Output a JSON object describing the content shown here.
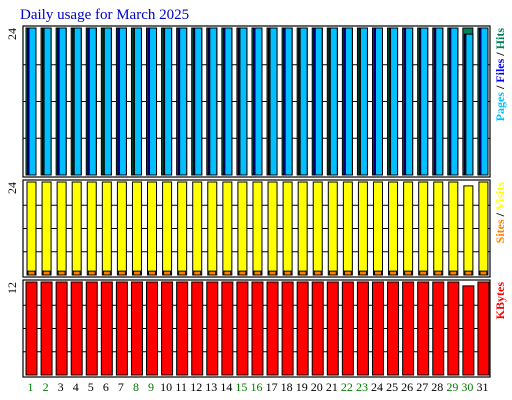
{
  "chart_data": {
    "type": "bar",
    "title": "Daily usage for March 2025",
    "categories": [
      "1",
      "2",
      "3",
      "4",
      "5",
      "6",
      "7",
      "8",
      "9",
      "10",
      "11",
      "12",
      "13",
      "14",
      "15",
      "16",
      "17",
      "18",
      "19",
      "20",
      "21",
      "22",
      "23",
      "24",
      "25",
      "26",
      "27",
      "28",
      "29",
      "30",
      "31"
    ],
    "weekend_days": [
      "1",
      "2",
      "8",
      "9",
      "15",
      "16",
      "22",
      "23",
      "29",
      "30"
    ],
    "colors": {
      "weekday_label": "#000000",
      "weekend_label": "#007c00",
      "hits": "#00805c",
      "files": "#0000ff",
      "pages": "#00c0ff",
      "visits": "#ffff00",
      "sites": "#ff8000",
      "kbytes": "#ff0000",
      "title": "#0000cc"
    },
    "panels": [
      {
        "id": "hits_files_pages",
        "ymax_label": "24",
        "ylim": [
          0,
          24
        ],
        "right_label": [
          {
            "text": "Pages",
            "color": "#00c0ff"
          },
          {
            "text": " / ",
            "color": "#000000"
          },
          {
            "text": "Files",
            "color": "#0000ff"
          },
          {
            "text": " / ",
            "color": "#000000"
          },
          {
            "text": "Hits",
            "color": "#00805c"
          }
        ],
        "series": [
          {
            "key": "hits",
            "values": [
              24,
              24,
              24,
              24,
              24,
              24,
              24,
              24,
              24,
              24,
              24,
              24,
              24,
              24,
              24,
              24,
              24,
              24,
              24,
              24,
              24,
              24,
              24,
              24,
              24,
              24,
              24,
              24,
              24,
              24,
              24
            ]
          },
          {
            "key": "files",
            "values": [
              24,
              24,
              24,
              24,
              24,
              24,
              24,
              24,
              24,
              24,
              24,
              24,
              24,
              24,
              24,
              24,
              24,
              24,
              24,
              24,
              24,
              24,
              24,
              24,
              24,
              24,
              24,
              24,
              24,
              23,
              24
            ]
          },
          {
            "key": "pages",
            "values": [
              24,
              24,
              24,
              24,
              24,
              24,
              24,
              24,
              24,
              24,
              24,
              24,
              24,
              24,
              24,
              24,
              24,
              24,
              24,
              24,
              24,
              24,
              24,
              24,
              24,
              24,
              24,
              24,
              24,
              23,
              24
            ]
          }
        ]
      },
      {
        "id": "visits_sites",
        "ymax_label": "24",
        "ylim": [
          0,
          24
        ],
        "right_label": [
          {
            "text": "Sites",
            "color": "#ff8000"
          },
          {
            "text": " / ",
            "color": "#000000"
          },
          {
            "text": "Visits",
            "color": "#ffff00"
          }
        ],
        "series": [
          {
            "key": "visits",
            "values": [
              24,
              24,
              24,
              24,
              24,
              24,
              24,
              24,
              24,
              24,
              24,
              24,
              24,
              24,
              24,
              24,
              24,
              24,
              24,
              24,
              24,
              24,
              24,
              24,
              24,
              24,
              24,
              24,
              24,
              23,
              24
            ]
          },
          {
            "key": "sites",
            "values": [
              1,
              1,
              1,
              1,
              1,
              1,
              1,
              1,
              1,
              1,
              1,
              1,
              1,
              1,
              1,
              1,
              1,
              1,
              1,
              1,
              1,
              1,
              1,
              1,
              1,
              1,
              1,
              1,
              1,
              1,
              1
            ]
          }
        ]
      },
      {
        "id": "kbytes",
        "ymax_label": "12",
        "ylim": [
          0,
          12
        ],
        "right_label": [
          {
            "text": "KBytes",
            "color": "#ff0000"
          }
        ],
        "series": [
          {
            "key": "kbytes",
            "values": [
              12,
              12,
              12,
              12,
              12,
              12,
              12,
              12,
              12,
              12,
              12,
              12,
              12,
              12,
              12,
              12,
              12,
              12,
              12,
              12,
              12,
              12,
              12,
              12,
              12,
              12,
              12,
              12,
              12,
              11.5,
              12
            ]
          }
        ]
      }
    ]
  }
}
